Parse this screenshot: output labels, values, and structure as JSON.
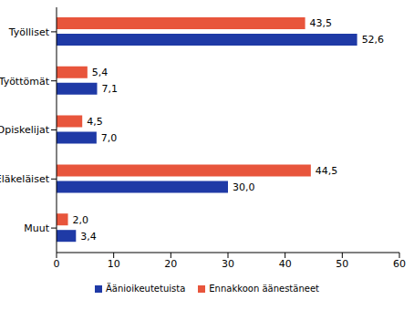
{
  "chart_data": {
    "type": "bar",
    "orientation": "horizontal",
    "categories": [
      "Työlliset",
      "Työttömät",
      "Opiskelijat",
      "Eläkeläiset",
      "Muut"
    ],
    "series": [
      {
        "name": "Äänioikeutetuista",
        "color": "#1f3aa6",
        "values": [
          52.6,
          7.1,
          7.0,
          30.0,
          3.4
        ],
        "value_labels": [
          "52,6",
          "7,1",
          "7,0",
          "30,0",
          "3,4"
        ]
      },
      {
        "name": "Ennakkoon äänestäneet",
        "color": "#e8553c",
        "values": [
          43.5,
          5.4,
          4.5,
          44.5,
          2.0
        ],
        "value_labels": [
          "43,5",
          "5,4",
          "4,5",
          "44,5",
          "2,0"
        ]
      }
    ],
    "xlim": [
      0,
      60
    ],
    "xticks": [
      0,
      10,
      20,
      30,
      40,
      50,
      60
    ],
    "grid": false,
    "data_labels": true,
    "legend": "bottom"
  }
}
